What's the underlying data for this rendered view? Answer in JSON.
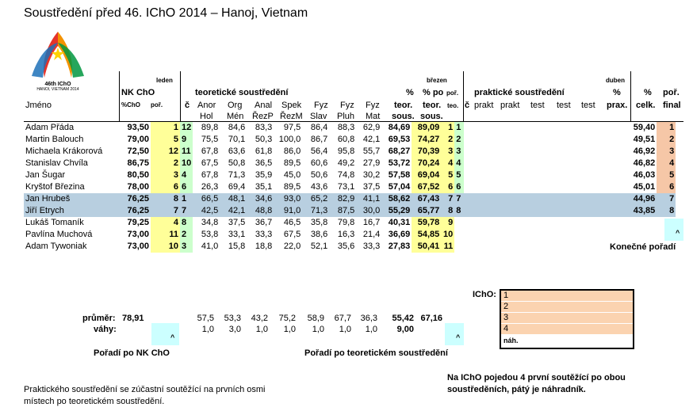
{
  "title": "Soustředění před 46. IChO 2014 – Hanoj, Vietnam",
  "logo": {
    "line1": "46th IChO",
    "line2": "HANOI, VIETNAM 2014"
  },
  "header": {
    "leden": "leden",
    "brezen": "březen",
    "duben": "duben",
    "nk_cho": "NK ChO",
    "pct_cho": "%ChO",
    "por": "poř.",
    "jmeno": "Jméno",
    "teor_group": "teoretické soustředění",
    "c": "č",
    "teor_cols": [
      "Anor",
      "Org",
      "Anal",
      "Spek",
      "Fyz",
      "Fyz",
      "Fyz"
    ],
    "teor_sub": [
      "Hol",
      "Mén",
      "ŘezP",
      "ŘezM",
      "Slav",
      "Pluh",
      "Mat"
    ],
    "pct": "%",
    "teor": "teor.",
    "pct_po": "% po",
    "teor2": "teor.",
    "sous": "sous.",
    "sous2": "sous.",
    "por2": "poř.",
    "teo": "teo.",
    "prakt_group": "praktické soustředění",
    "c2": "č",
    "prakt_cols": [
      "prakt",
      "prakt",
      "test",
      "test",
      "test"
    ],
    "pct_prax1": "%",
    "prax": "prax.",
    "pct_celk1": "%",
    "celk": "celk.",
    "por_final1": "poř.",
    "final": "final"
  },
  "rows": [
    {
      "name": "Adam Přáda",
      "nk": "93,50",
      "nkpor": "1",
      "c": "12",
      "t": [
        "89,8",
        "84,6",
        "83,3",
        "97,5",
        "86,4",
        "88,3",
        "62,9"
      ],
      "teor": "84,69",
      "popo": "89,09",
      "por": "1",
      "c2": "1",
      "celk": "59,40",
      "final": "1"
    },
    {
      "name": "Martin Balouch",
      "nk": "79,00",
      "nkpor": "5",
      "c": "9",
      "t": [
        "75,5",
        "70,1",
        "50,3",
        "100,0",
        "86,7",
        "60,8",
        "42,1"
      ],
      "teor": "69,53",
      "popo": "74,27",
      "por": "2",
      "c2": "2",
      "celk": "49,51",
      "final": "2"
    },
    {
      "name": "Michaela Krákorová",
      "nk": "72,50",
      "nkpor": "12",
      "c": "11",
      "t": [
        "67,8",
        "63,6",
        "61,8",
        "86,0",
        "56,4",
        "95,8",
        "55,7"
      ],
      "teor": "68,27",
      "popo": "70,39",
      "por": "3",
      "c2": "3",
      "celk": "46,92",
      "final": "3"
    },
    {
      "name": "Stanislav Chvíla",
      "nk": "86,75",
      "nkpor": "2",
      "c": "10",
      "t": [
        "67,5",
        "50,8",
        "36,5",
        "89,5",
        "60,6",
        "49,2",
        "27,9"
      ],
      "teor": "53,72",
      "popo": "70,24",
      "por": "4",
      "c2": "4",
      "celk": "46,82",
      "final": "4"
    },
    {
      "name": "Jan Šugar",
      "nk": "80,50",
      "nkpor": "3",
      "c": "4",
      "t": [
        "67,8",
        "71,3",
        "35,9",
        "45,0",
        "50,6",
        "74,8",
        "30,2"
      ],
      "teor": "57,58",
      "popo": "69,04",
      "por": "5",
      "c2": "5",
      "celk": "46,03",
      "final": "5"
    },
    {
      "name": "Kryštof Březina",
      "nk": "78,00",
      "nkpor": "6",
      "c": "6",
      "t": [
        "26,3",
        "69,4",
        "35,1",
        "89,5",
        "43,6",
        "73,1",
        "37,5"
      ],
      "teor": "57,04",
      "popo": "67,52",
      "por": "6",
      "c2": "6",
      "celk": "45,01",
      "final": "6"
    },
    {
      "name": "Jan Hrubeš",
      "nk": "76,25",
      "nkpor": "8",
      "c": "1",
      "t": [
        "66,5",
        "48,1",
        "34,6",
        "93,0",
        "65,2",
        "82,9",
        "41,1"
      ],
      "teor": "58,62",
      "popo": "67,43",
      "por": "7",
      "c2": "7",
      "celk": "44,96",
      "final": "7"
    },
    {
      "name": "Jiří Etrych",
      "nk": "76,25",
      "nkpor": "7",
      "c": "7",
      "t": [
        "42,5",
        "42,1",
        "48,8",
        "91,0",
        "71,3",
        "87,5",
        "30,0"
      ],
      "teor": "55,29",
      "popo": "65,77",
      "por": "8",
      "c2": "8",
      "celk": "43,85",
      "final": "8"
    },
    {
      "name": "Lukáš Tomaník",
      "nk": "79,25",
      "nkpor": "4",
      "c": "8",
      "t": [
        "34,8",
        "37,5",
        "36,7",
        "46,5",
        "35,8",
        "79,8",
        "16,7"
      ],
      "teor": "40,31",
      "popo": "59,78",
      "por": "9",
      "c2": "",
      "celk": "",
      "final": ""
    },
    {
      "name": "Pavlína Muchová",
      "nk": "73,00",
      "nkpor": "11",
      "c": "2",
      "t": [
        "53,8",
        "33,1",
        "33,3",
        "67,5",
        "38,6",
        "16,3",
        "21,4"
      ],
      "teor": "36,69",
      "popo": "54,85",
      "por": "10",
      "c2": "",
      "celk": "",
      "final": ""
    },
    {
      "name": "Adam Tywoniak",
      "nk": "73,00",
      "nkpor": "10",
      "c": "3",
      "t": [
        "41,0",
        "15,8",
        "18,8",
        "22,0",
        "52,1",
        "35,6",
        "33,3"
      ],
      "teor": "27,83",
      "popo": "50,41",
      "por": "11",
      "c2": "",
      "celk": "",
      "final": ""
    }
  ],
  "final_caret": "^",
  "konecne": "Konečné pořadí",
  "prumer": {
    "label": "průměr:",
    "nk": "78,91",
    "t": [
      "57,5",
      "53,3",
      "43,2",
      "75,2",
      "58,9",
      "67,7",
      "36,3"
    ],
    "teor": "55,42",
    "popo": "67,16"
  },
  "vahy": {
    "label": "váhy:",
    "t": [
      "1,0",
      "3,0",
      "1,0",
      "1,0",
      "1,0",
      "1,0",
      "1,0"
    ],
    "teor": "9,00"
  },
  "caret1": "^",
  "caret2": "^",
  "poradi_nk": "Pořadí po NK ChO",
  "poradi_teor": "Pořadí po teoretickém soustředění",
  "icho": {
    "label": "IChO:",
    "items": [
      "1",
      "2",
      "3",
      "4"
    ],
    "nah": "náh."
  },
  "note_right": "Na IChO pojedou 4 první soutěžící po obou soustředěních, pátý je náhradník.",
  "note_left": "Praktického soustředění se zúčastní soutěžící na prvních osmi místech po teoretickém soustředění.",
  "colors": {
    "yellow": "#ffff99",
    "green": "#ccffcc",
    "cyan": "#ccffff",
    "peach": "#fbd3b0",
    "highlight": "#b8cfe0"
  }
}
